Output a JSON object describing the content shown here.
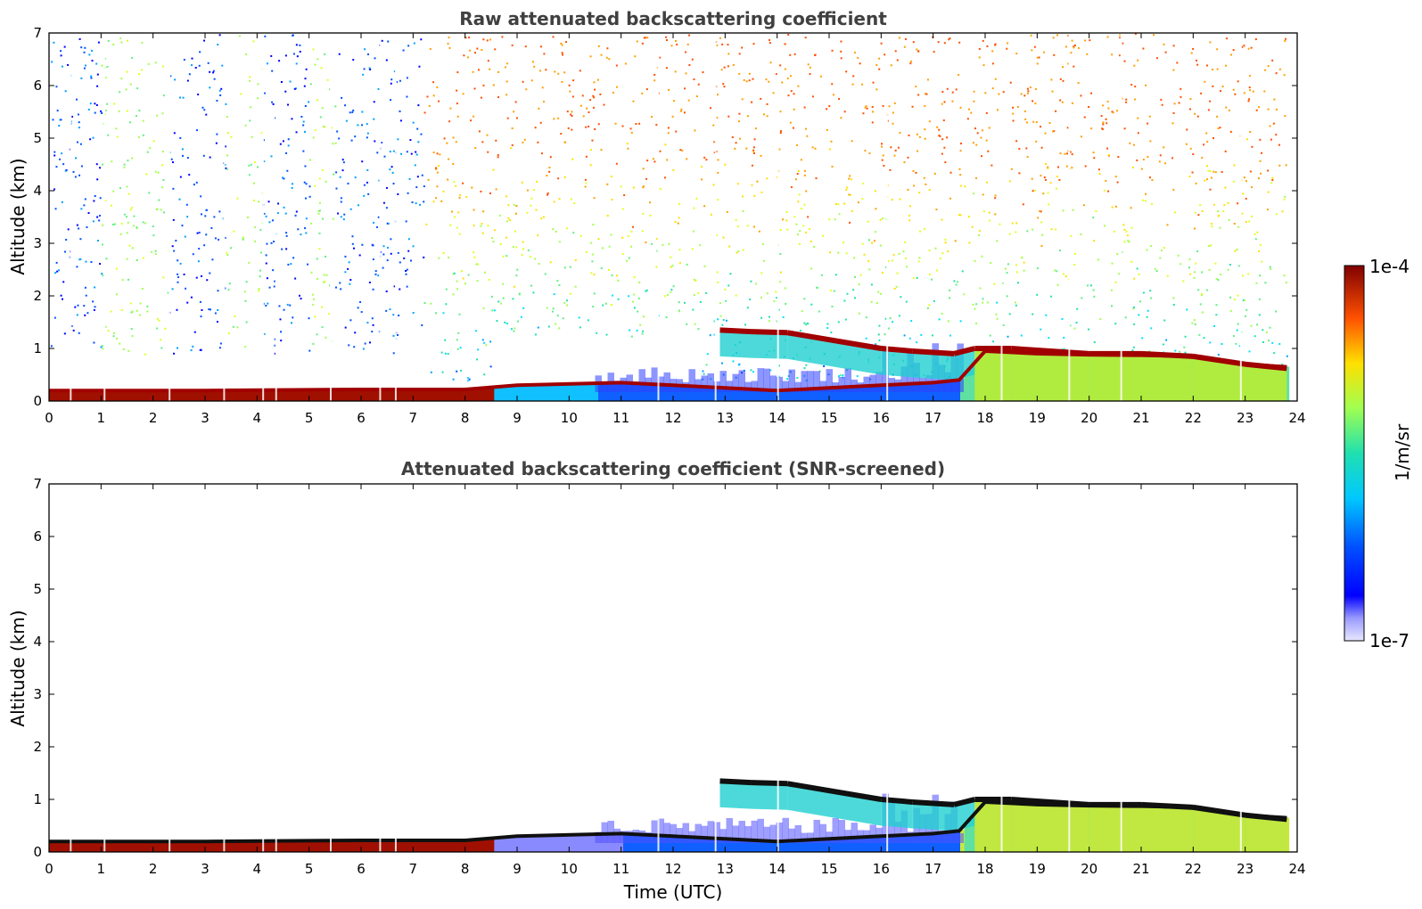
{
  "chart_data": [
    {
      "type": "heatmap",
      "title": "Raw attenuated backscattering coefficient",
      "xlabel": "",
      "ylabel": "Altitude (km)",
      "xlim": [
        0,
        24
      ],
      "ylim": [
        0,
        7
      ],
      "x_ticks": [
        0,
        1,
        2,
        3,
        4,
        5,
        6,
        7,
        8,
        9,
        10,
        11,
        12,
        13,
        14,
        15,
        16,
        17,
        18,
        19,
        20,
        21,
        22,
        23,
        24
      ],
      "y_ticks": [
        0,
        1,
        2,
        3,
        4,
        5,
        6,
        7
      ],
      "layers": [
        {
          "name": "boundary-layer",
          "x": [
            0,
            3,
            6,
            8,
            9,
            11,
            12,
            13,
            14,
            15,
            16,
            17,
            17.5,
            18,
            19,
            20,
            21,
            22,
            23,
            23.8
          ],
          "top_km": [
            0.2,
            0.2,
            0.22,
            0.22,
            0.3,
            0.35,
            0.3,
            0.25,
            0.2,
            0.25,
            0.3,
            0.35,
            0.4,
            0.95,
            0.9,
            0.88,
            0.87,
            0.85,
            0.7,
            0.65
          ]
        },
        {
          "name": "cloud-base",
          "x": [
            12.9,
            13.5,
            14.2,
            16.0,
            16.6,
            17.4,
            17.8,
            18.5,
            20,
            21,
            22,
            23,
            23.8
          ],
          "alt_km": [
            1.35,
            1.32,
            1.3,
            1.0,
            0.95,
            0.9,
            1.0,
            1.0,
            0.9,
            0.9,
            0.85,
            0.7,
            0.62
          ]
        }
      ],
      "noise_density_note": "sparse noise above boundary layer"
    },
    {
      "type": "heatmap",
      "title": "Attenuated backscattering coefficient (SNR-screened)",
      "xlabel": "Time (UTC)",
      "ylabel": "Altitude (km)",
      "xlim": [
        0,
        24
      ],
      "ylim": [
        0,
        7
      ],
      "x_ticks": [
        0,
        1,
        2,
        3,
        4,
        5,
        6,
        7,
        8,
        9,
        10,
        11,
        12,
        13,
        14,
        15,
        16,
        17,
        18,
        19,
        20,
        21,
        22,
        23,
        24
      ],
      "y_ticks": [
        0,
        1,
        2,
        3,
        4,
        5,
        6,
        7
      ],
      "colorbar": {
        "min_label": "1e-7",
        "max_label": "1e-4",
        "unit": "1/m/sr",
        "scale": "log",
        "range": [
          1e-07,
          0.0001
        ]
      }
    }
  ]
}
